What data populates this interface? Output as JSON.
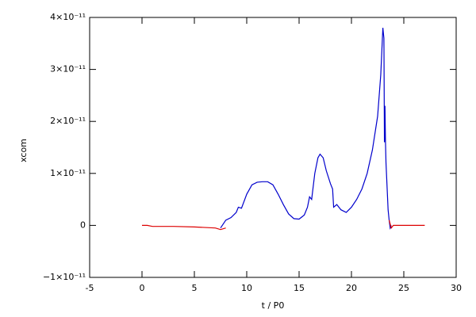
{
  "chart_data": {
    "type": "line",
    "xlabel": "t / P0",
    "ylabel": "xcom",
    "xlim": [
      -5,
      30
    ],
    "xticks": [
      -5,
      0,
      5,
      10,
      15,
      20,
      25,
      30
    ],
    "ylim": [
      -1e-11,
      4e-11
    ],
    "yticks": [
      {
        "value": -1e-11,
        "label": "−1×10⁻¹¹"
      },
      0,
      {
        "value": 1e-11,
        "label": "1×10⁻¹¹"
      },
      {
        "value": 2e-11,
        "label": "2×10⁻¹¹"
      },
      {
        "value": 3e-11,
        "label": "3×10⁻¹¹"
      },
      {
        "value": 4e-11,
        "label": "4×10⁻¹¹"
      }
    ],
    "series": [
      {
        "color": "#dd0000",
        "x": [
          0,
          0.5,
          1,
          3,
          5,
          7,
          7.5,
          8
        ],
        "values": [
          0,
          0,
          -2e-13,
          -2e-13,
          -3e-13,
          -5e-13,
          -8e-13,
          -5e-13
        ]
      },
      {
        "color": "#0000cc",
        "x": [
          7.5,
          8,
          8.5,
          9,
          9.2,
          9.5,
          10,
          10.5,
          11,
          11.5,
          12,
          12.5,
          13,
          13.5,
          14,
          14.5,
          15,
          15.5,
          15.8,
          16,
          16.2,
          16.5,
          16.8,
          17,
          17.3,
          17.6,
          18,
          18.2,
          18.3,
          18.6,
          19,
          19.5,
          20,
          20.5,
          21,
          21.5,
          22,
          22.5,
          22.8,
          23,
          23.1,
          23.15,
          23.2,
          23.25,
          23.3,
          23.5,
          23.6,
          23.7,
          23.8
        ],
        "values": [
          -5e-13,
          1e-12,
          1.5e-12,
          2.5e-12,
          3.5e-12,
          3.3e-12,
          6e-12,
          7.8e-12,
          8.3e-12,
          8.4e-12,
          8.4e-12,
          7.8e-12,
          6e-12,
          4e-12,
          2.2e-12,
          1.3e-12,
          1.2e-12,
          2e-12,
          3.5e-12,
          5.5e-12,
          5e-12,
          1e-11,
          1.3e-11,
          1.37e-11,
          1.3e-11,
          1.05e-11,
          8e-12,
          7e-12,
          3.5e-12,
          4e-12,
          3e-12,
          2.5e-12,
          3.5e-12,
          5e-12,
          7e-12,
          1e-11,
          1.45e-11,
          2.1e-11,
          2.9e-11,
          3.8e-11,
          3.6e-11,
          1.6e-11,
          2.3e-11,
          1.6e-11,
          1.2e-11,
          3e-12,
          1e-12,
          -5e-13,
          0
        ]
      },
      {
        "color": "#dd0000",
        "x": [
          23.6,
          23.8,
          24,
          27
        ],
        "values": [
          1e-12,
          -5e-13,
          0,
          0
        ]
      }
    ]
  }
}
